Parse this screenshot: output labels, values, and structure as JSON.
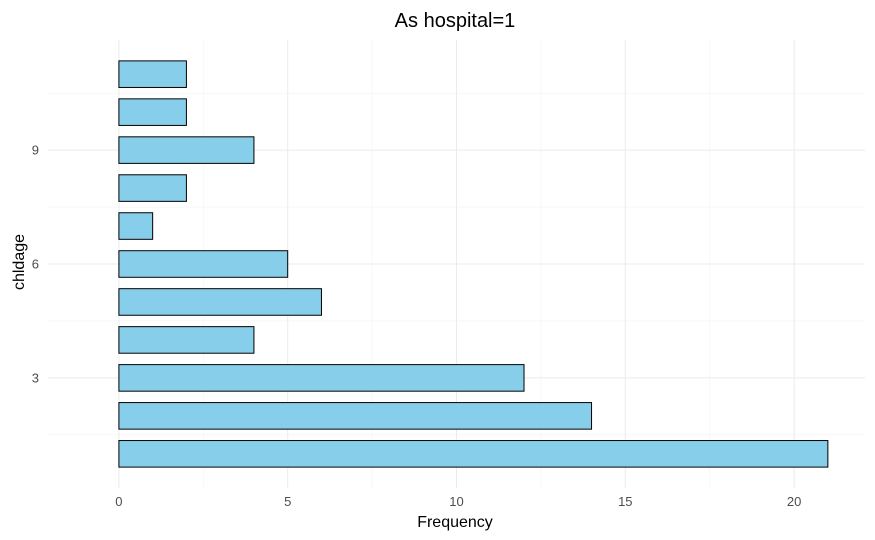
{
  "chart_data": {
    "type": "bar",
    "orientation": "horizontal",
    "title": "As hospital=1",
    "xlabel": "Frequency",
    "ylabel": "chldage",
    "categories": [
      1,
      2,
      3,
      4,
      5,
      6,
      7,
      8,
      9,
      10,
      11
    ],
    "values": [
      21,
      14,
      12,
      4,
      6,
      5,
      1,
      2,
      4,
      2,
      2
    ],
    "xlim": [
      -2.1,
      22.1
    ],
    "ylim": [
      0.1,
      11.9
    ],
    "x_ticks": [
      0,
      5,
      10,
      15,
      20
    ],
    "y_ticks": [
      3,
      6,
      9
    ],
    "grid": true,
    "colors": {
      "bar_fill": "#87CEEB",
      "bar_stroke": "#000000"
    }
  }
}
